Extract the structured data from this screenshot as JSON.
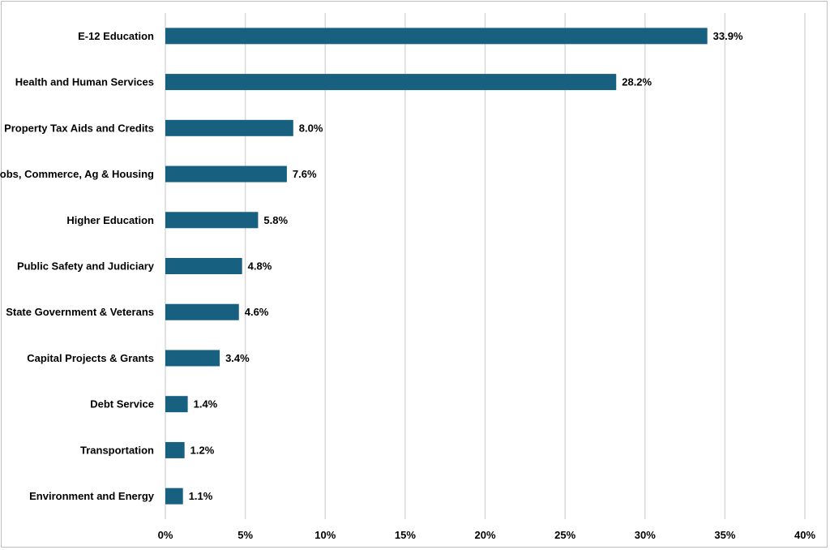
{
  "chart_data": {
    "type": "bar",
    "orientation": "horizontal",
    "categories": [
      "E-12 Education",
      "Health and Human Services",
      "Property Tax Aids and Credits",
      "Jobs, Commerce, Ag & Housing",
      "Higher Education",
      "Public Safety and Judiciary",
      "State Government & Veterans",
      "Capital Projects & Grants",
      "Debt Service",
      "Transportation",
      "Environment and Energy"
    ],
    "values": [
      33.9,
      28.2,
      8.0,
      7.6,
      5.8,
      4.8,
      4.6,
      3.4,
      1.4,
      1.2,
      1.1
    ],
    "value_labels": [
      "33.9%",
      "28.2%",
      "8.0%",
      "7.6%",
      "5.8%",
      "4.8%",
      "4.6%",
      "3.4%",
      "1.4%",
      "1.2%",
      "1.1%"
    ],
    "xlim": [
      0,
      40
    ],
    "x_ticks": [
      0,
      5,
      10,
      15,
      20,
      25,
      30,
      35,
      40
    ],
    "x_tick_labels": [
      "0%",
      "5%",
      "10%",
      "15%",
      "20%",
      "25%",
      "30%",
      "35%",
      "40%"
    ],
    "title": "",
    "xlabel": "",
    "ylabel": "",
    "grid": "vertical",
    "legend": "none",
    "bar_color": "#17607f"
  }
}
